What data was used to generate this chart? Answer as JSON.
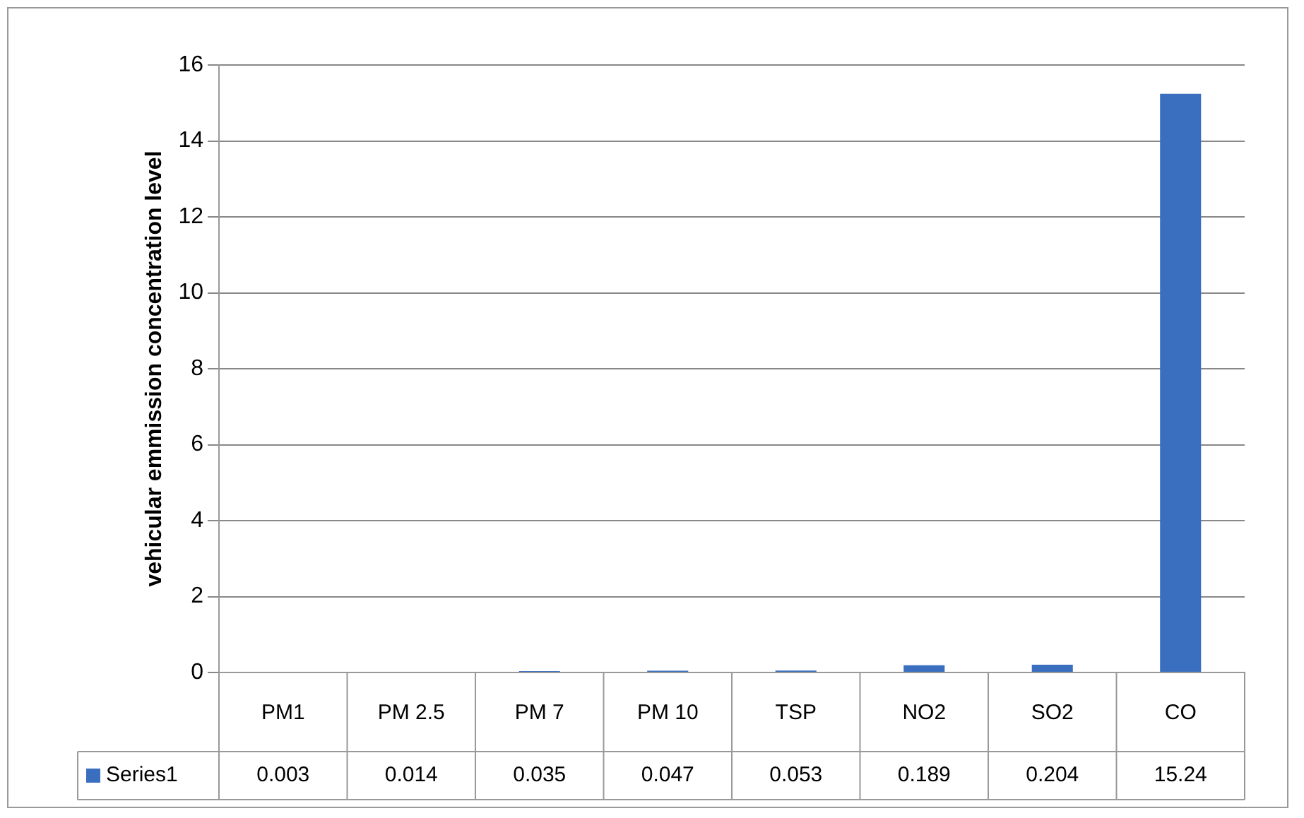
{
  "chart_data": {
    "type": "bar",
    "ylabel": "vehicular emmission concentration level",
    "categories": [
      "PM1",
      "PM 2.5",
      "PM 7",
      "PM 10",
      "TSP",
      "NO2",
      "SO2",
      "CO"
    ],
    "series": [
      {
        "name": "Series1",
        "color": "#3a6fc0",
        "values": [
          0.003,
          0.014,
          0.035,
          0.047,
          0.053,
          0.189,
          0.204,
          15.24
        ]
      }
    ],
    "ylim": [
      0,
      16
    ],
    "yticks": [
      0,
      2,
      4,
      6,
      8,
      10,
      12,
      14,
      16
    ],
    "grid": "y",
    "legend": "bottom",
    "data_labels": true
  }
}
